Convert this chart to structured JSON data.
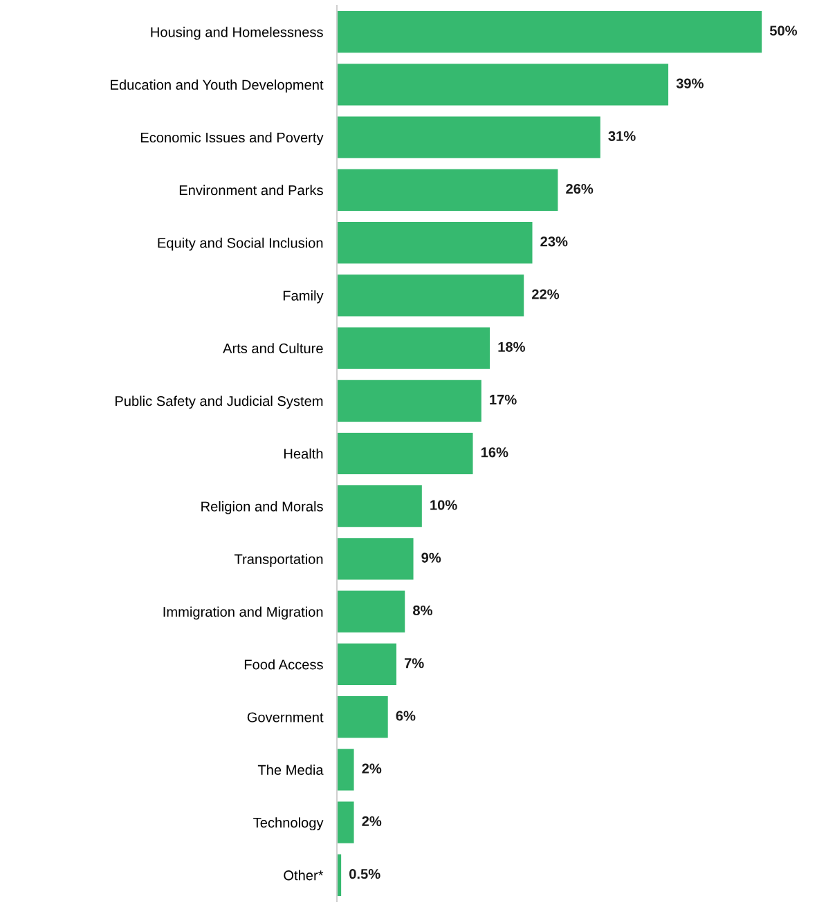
{
  "chart_data": {
    "type": "bar",
    "orientation": "horizontal",
    "data_labels": true,
    "grid": false,
    "legend": false,
    "color": "#36b96f",
    "categories": [
      "Housing and Homelessness",
      "Education and Youth Development",
      "Economic Issues and Poverty",
      "Environment and Parks",
      "Equity and Social Inclusion",
      "Family",
      "Arts and Culture",
      "Public Safety and Judicial System",
      "Health",
      "Religion and Morals",
      "Transportation",
      "Immigration and Migration",
      "Food Access",
      "Government",
      "The Media",
      "Technology",
      "Other*"
    ],
    "values": [
      50,
      39,
      31,
      26,
      23,
      22,
      18,
      17,
      16,
      10,
      9,
      8,
      7,
      6,
      2,
      2,
      0.5
    ],
    "value_labels": [
      "50%",
      "39%",
      "31%",
      "26%",
      "23%",
      "22%",
      "18%",
      "17%",
      "16%",
      "10%",
      "9%",
      "8%",
      "7%",
      "6%",
      "2%",
      "2%",
      "0.5%"
    ]
  }
}
